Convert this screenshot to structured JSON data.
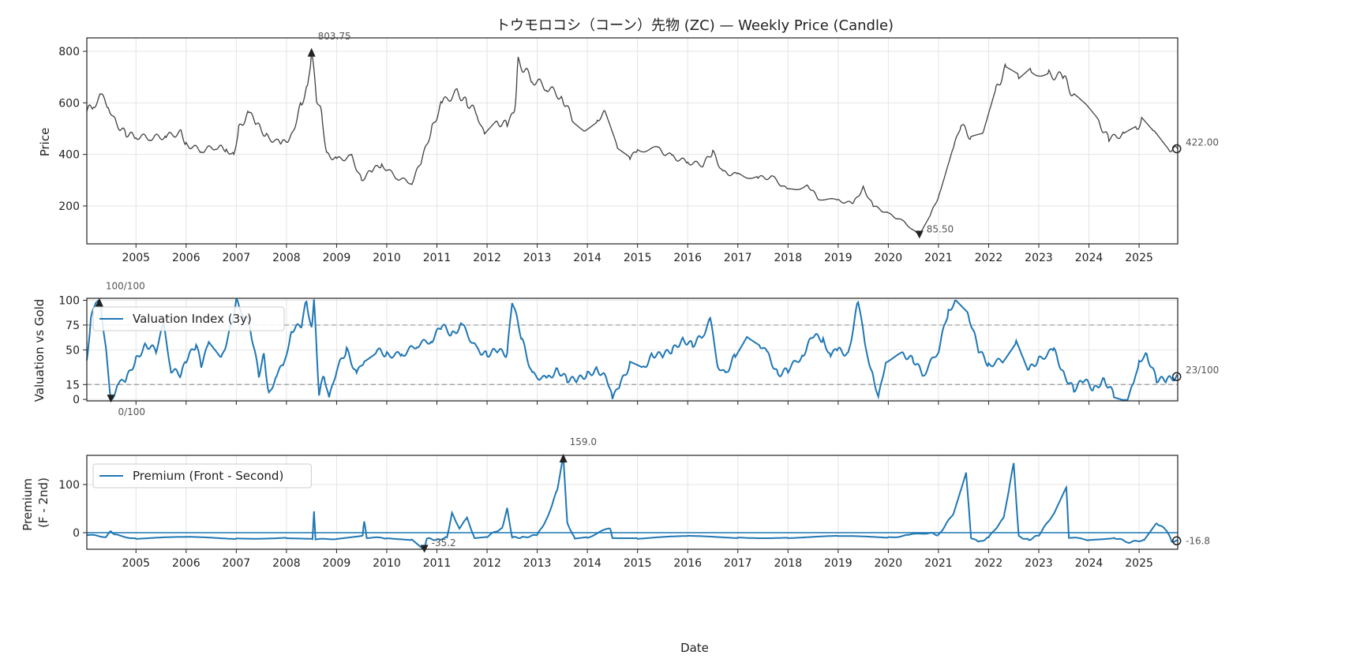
{
  "chart_data": [
    {
      "type": "line",
      "title": "トウモロコシ（コーン）先物 (ZC) — Weekly Price (Candle)",
      "ylabel": "Price",
      "xlabel": "",
      "xlim": [
        2004.02,
        2025.77
      ],
      "ylim": [
        53,
        852
      ],
      "yticks": [
        200,
        400,
        600,
        800
      ],
      "xticks": [
        2005,
        2006,
        2007,
        2008,
        2009,
        2010,
        2011,
        2012,
        2013,
        2014,
        2015,
        2016,
        2017,
        2018,
        2019,
        2020,
        2021,
        2022,
        2023,
        2024,
        2025
      ],
      "grid": true,
      "annotations": {
        "max": {
          "x": 2008.5,
          "y": 803.75,
          "label": "803.75"
        },
        "min": {
          "x": 2020.62,
          "y": 85.5,
          "label": "85.50"
        },
        "last": {
          "x": 2025.75,
          "y": 422,
          "label": "422.00"
        }
      },
      "points": [
        [
          2004.02,
          570
        ],
        [
          2004.15,
          590
        ],
        [
          2004.3,
          625
        ],
        [
          2004.45,
          590
        ],
        [
          2004.6,
          520
        ],
        [
          2004.8,
          480
        ],
        [
          2005.0,
          470
        ],
        [
          2005.3,
          465
        ],
        [
          2005.6,
          470
        ],
        [
          2005.9,
          485
        ],
        [
          2006.0,
          440
        ],
        [
          2006.3,
          415
        ],
        [
          2006.6,
          430
        ],
        [
          2006.8,
          420
        ],
        [
          2006.95,
          400
        ],
        [
          2007.05,
          500
        ],
        [
          2007.25,
          560
        ],
        [
          2007.4,
          520
        ],
        [
          2007.6,
          470
        ],
        [
          2007.9,
          440
        ],
        [
          2008.1,
          470
        ],
        [
          2008.3,
          600
        ],
        [
          2008.42,
          660
        ],
        [
          2008.5,
          800
        ],
        [
          2008.6,
          620
        ],
        [
          2008.7,
          560
        ],
        [
          2008.8,
          400
        ],
        [
          2009.0,
          380
        ],
        [
          2009.3,
          390
        ],
        [
          2009.5,
          300
        ],
        [
          2009.7,
          340
        ],
        [
          2009.9,
          360
        ],
        [
          2010.2,
          310
        ],
        [
          2010.5,
          290
        ],
        [
          2010.7,
          380
        ],
        [
          2010.9,
          500
        ],
        [
          2011.1,
          600
        ],
        [
          2011.4,
          640
        ],
        [
          2011.6,
          600
        ],
        [
          2011.8,
          560
        ],
        [
          2011.95,
          470
        ],
        [
          2012.2,
          520
        ],
        [
          2012.4,
          520
        ],
        [
          2012.55,
          560
        ],
        [
          2012.62,
          760
        ],
        [
          2012.9,
          690
        ],
        [
          2013.2,
          660
        ],
        [
          2013.5,
          620
        ],
        [
          2013.7,
          540
        ],
        [
          2013.95,
          500
        ],
        [
          2014.2,
          540
        ],
        [
          2014.35,
          560
        ],
        [
          2014.6,
          420
        ],
        [
          2014.85,
          380
        ],
        [
          2015.0,
          420
        ],
        [
          2015.4,
          420
        ],
        [
          2015.7,
          390
        ],
        [
          2016.0,
          370
        ],
        [
          2016.3,
          360
        ],
        [
          2016.5,
          410
        ],
        [
          2016.7,
          330
        ],
        [
          2017.0,
          320
        ],
        [
          2017.4,
          310
        ],
        [
          2017.7,
          310
        ],
        [
          2018.0,
          260
        ],
        [
          2018.4,
          280
        ],
        [
          2018.6,
          230
        ],
        [
          2019.0,
          220
        ],
        [
          2019.3,
          210
        ],
        [
          2019.5,
          270
        ],
        [
          2019.7,
          200
        ],
        [
          2020.0,
          170
        ],
        [
          2020.3,
          140
        ],
        [
          2020.62,
          85
        ],
        [
          2020.85,
          170
        ],
        [
          2021.05,
          260
        ],
        [
          2021.3,
          420
        ],
        [
          2021.45,
          520
        ],
        [
          2021.65,
          460
        ],
        [
          2021.9,
          480
        ],
        [
          2022.15,
          650
        ],
        [
          2022.35,
          740
        ],
        [
          2022.6,
          700
        ],
        [
          2022.85,
          730
        ],
        [
          2023.2,
          710
        ],
        [
          2023.5,
          700
        ],
        [
          2023.7,
          620
        ],
        [
          2023.95,
          580
        ],
        [
          2024.2,
          520
        ],
        [
          2024.4,
          460
        ],
        [
          2024.7,
          480
        ],
        [
          2024.95,
          500
        ],
        [
          2025.05,
          530
        ],
        [
          2025.3,
          480
        ],
        [
          2025.55,
          420
        ],
        [
          2025.77,
          422
        ]
      ]
    },
    {
      "type": "line",
      "ylabel": "Valuation vs Gold",
      "ylim": [
        -1.5,
        102
      ],
      "yticks": [
        0,
        15,
        50,
        75,
        100
      ],
      "hlines": [
        15,
        75
      ],
      "legend": {
        "label": "Valuation Index (3y)",
        "placement": "top-left"
      },
      "annotations": {
        "max": {
          "x": 2004.27,
          "y": 100,
          "label": "100/100"
        },
        "min": {
          "x": 2004.5,
          "y": 0,
          "label": "0/100"
        },
        "last": {
          "x": 2025.75,
          "y": 23,
          "label": "23/100"
        }
      },
      "points": [
        [
          2004.02,
          40
        ],
        [
          2004.1,
          80
        ],
        [
          2004.2,
          100
        ],
        [
          2004.3,
          95
        ],
        [
          2004.4,
          50
        ],
        [
          2004.5,
          0
        ],
        [
          2004.65,
          15
        ],
        [
          2004.8,
          20
        ],
        [
          2005.0,
          40
        ],
        [
          2005.2,
          55
        ],
        [
          2005.4,
          50
        ],
        [
          2005.55,
          75
        ],
        [
          2005.7,
          30
        ],
        [
          2005.9,
          25
        ],
        [
          2006.0,
          40
        ],
        [
          2006.2,
          55
        ],
        [
          2006.3,
          35
        ],
        [
          2006.45,
          55
        ],
        [
          2006.7,
          40
        ],
        [
          2006.9,
          75
        ],
        [
          2007.0,
          100
        ],
        [
          2007.15,
          85
        ],
        [
          2007.25,
          80
        ],
        [
          2007.45,
          25
        ],
        [
          2007.55,
          45
        ],
        [
          2007.65,
          5
        ],
        [
          2007.8,
          25
        ],
        [
          2007.95,
          35
        ],
        [
          2008.1,
          70
        ],
        [
          2008.3,
          75
        ],
        [
          2008.4,
          100
        ],
        [
          2008.5,
          70
        ],
        [
          2008.55,
          100
        ],
        [
          2008.65,
          5
        ],
        [
          2008.75,
          25
        ],
        [
          2008.85,
          0
        ],
        [
          2009.0,
          30
        ],
        [
          2009.2,
          50
        ],
        [
          2009.4,
          25
        ],
        [
          2009.55,
          40
        ],
        [
          2009.8,
          50
        ],
        [
          2010.0,
          45
        ],
        [
          2010.3,
          45
        ],
        [
          2010.6,
          55
        ],
        [
          2010.9,
          60
        ],
        [
          2011.1,
          75
        ],
        [
          2011.3,
          65
        ],
        [
          2011.5,
          75
        ],
        [
          2011.8,
          50
        ],
        [
          2012.0,
          45
        ],
        [
          2012.2,
          50
        ],
        [
          2012.4,
          45
        ],
        [
          2012.5,
          100
        ],
        [
          2012.7,
          60
        ],
        [
          2012.9,
          25
        ],
        [
          2013.2,
          20
        ],
        [
          2013.4,
          30
        ],
        [
          2013.6,
          20
        ],
        [
          2013.8,
          20
        ],
        [
          2014.0,
          25
        ],
        [
          2014.2,
          30
        ],
        [
          2014.4,
          20
        ],
        [
          2014.5,
          0
        ],
        [
          2014.65,
          15
        ],
        [
          2014.85,
          35
        ],
        [
          2015.1,
          30
        ],
        [
          2015.3,
          45
        ],
        [
          2015.5,
          45
        ],
        [
          2015.7,
          50
        ],
        [
          2015.9,
          60
        ],
        [
          2016.1,
          55
        ],
        [
          2016.3,
          65
        ],
        [
          2016.45,
          80
        ],
        [
          2016.6,
          35
        ],
        [
          2016.75,
          25
        ],
        [
          2016.95,
          45
        ],
        [
          2017.2,
          65
        ],
        [
          2017.45,
          55
        ],
        [
          2017.6,
          45
        ],
        [
          2017.8,
          25
        ],
        [
          2018.0,
          30
        ],
        [
          2018.3,
          45
        ],
        [
          2018.5,
          65
        ],
        [
          2018.7,
          60
        ],
        [
          2018.85,
          45
        ],
        [
          2019.0,
          50
        ],
        [
          2019.2,
          45
        ],
        [
          2019.4,
          100
        ],
        [
          2019.55,
          50
        ],
        [
          2019.7,
          25
        ],
        [
          2019.8,
          0
        ],
        [
          2019.95,
          40
        ],
        [
          2020.3,
          45
        ],
        [
          2020.5,
          40
        ],
        [
          2020.7,
          25
        ],
        [
          2021.0,
          50
        ],
        [
          2021.2,
          90
        ],
        [
          2021.35,
          100
        ],
        [
          2021.6,
          85
        ],
        [
          2021.8,
          50
        ],
        [
          2022.0,
          35
        ],
        [
          2022.3,
          40
        ],
        [
          2022.55,
          60
        ],
        [
          2022.8,
          30
        ],
        [
          2023.0,
          40
        ],
        [
          2023.3,
          50
        ],
        [
          2023.5,
          25
        ],
        [
          2023.7,
          10
        ],
        [
          2023.9,
          20
        ],
        [
          2024.1,
          10
        ],
        [
          2024.3,
          20
        ],
        [
          2024.5,
          5
        ],
        [
          2024.75,
          0
        ],
        [
          2024.9,
          15
        ],
        [
          2025.0,
          40
        ],
        [
          2025.15,
          45
        ],
        [
          2025.35,
          20
        ],
        [
          2025.55,
          20
        ],
        [
          2025.77,
          23
        ]
      ]
    },
    {
      "type": "line",
      "ylabel": "Premium\n(F - 2nd)",
      "xlabel": "Date",
      "ylim": [
        -34.4,
        160.6
      ],
      "yticks": [
        0,
        100
      ],
      "hlines": [
        0
      ],
      "legend": {
        "label": "Premium (Front - Second)",
        "placement": "top-left"
      },
      "annotations": {
        "max": {
          "x": 2013.52,
          "y": 159.0,
          "label": "159.0"
        },
        "min": {
          "x": 2010.75,
          "y": -35.2,
          "label": "-35.2"
        },
        "last": {
          "x": 2025.75,
          "y": -16.8,
          "label": "-16.8"
        }
      },
      "points": [
        [
          2004.02,
          -5
        ],
        [
          2004.4,
          -8
        ],
        [
          2004.5,
          3
        ],
        [
          2004.6,
          -5
        ],
        [
          2005.0,
          -12
        ],
        [
          2006.0,
          -10
        ],
        [
          2007.0,
          -12
        ],
        [
          2008.0,
          -10
        ],
        [
          2008.52,
          -12
        ],
        [
          2008.55,
          45
        ],
        [
          2008.58,
          -15
        ],
        [
          2009.0,
          -12
        ],
        [
          2009.52,
          -5
        ],
        [
          2009.55,
          25
        ],
        [
          2009.6,
          -10
        ],
        [
          2010.0,
          -12
        ],
        [
          2010.5,
          -14
        ],
        [
          2010.75,
          -35
        ],
        [
          2010.8,
          -12
        ],
        [
          2011.0,
          -15
        ],
        [
          2011.2,
          -10
        ],
        [
          2011.3,
          40
        ],
        [
          2011.45,
          10
        ],
        [
          2011.6,
          30
        ],
        [
          2011.75,
          -10
        ],
        [
          2012.0,
          -8
        ],
        [
          2012.3,
          10
        ],
        [
          2012.4,
          50
        ],
        [
          2012.5,
          -10
        ],
        [
          2012.7,
          -10
        ],
        [
          2013.0,
          -5
        ],
        [
          2013.2,
          30
        ],
        [
          2013.4,
          90
        ],
        [
          2013.52,
          159
        ],
        [
          2013.6,
          20
        ],
        [
          2013.75,
          -12
        ],
        [
          2014.0,
          -10
        ],
        [
          2014.45,
          10
        ],
        [
          2014.5,
          -10
        ],
        [
          2015.0,
          -12
        ],
        [
          2016.0,
          -8
        ],
        [
          2017.0,
          -10
        ],
        [
          2018.0,
          -10
        ],
        [
          2019.0,
          -8
        ],
        [
          2020.0,
          -10
        ],
        [
          2020.4,
          -5
        ],
        [
          2020.8,
          0
        ],
        [
          2021.0,
          -5
        ],
        [
          2021.3,
          40
        ],
        [
          2021.55,
          125
        ],
        [
          2021.65,
          -10
        ],
        [
          2021.8,
          -20
        ],
        [
          2022.0,
          -10
        ],
        [
          2022.3,
          30
        ],
        [
          2022.5,
          145
        ],
        [
          2022.6,
          -8
        ],
        [
          2022.8,
          -15
        ],
        [
          2023.0,
          -5
        ],
        [
          2023.3,
          40
        ],
        [
          2023.55,
          95
        ],
        [
          2023.6,
          -10
        ],
        [
          2024.0,
          -15
        ],
        [
          2024.5,
          -10
        ],
        [
          2024.8,
          -20
        ],
        [
          2025.1,
          -15
        ],
        [
          2025.35,
          20
        ],
        [
          2025.55,
          5
        ],
        [
          2025.65,
          -18
        ],
        [
          2025.77,
          -16.8
        ]
      ]
    }
  ]
}
